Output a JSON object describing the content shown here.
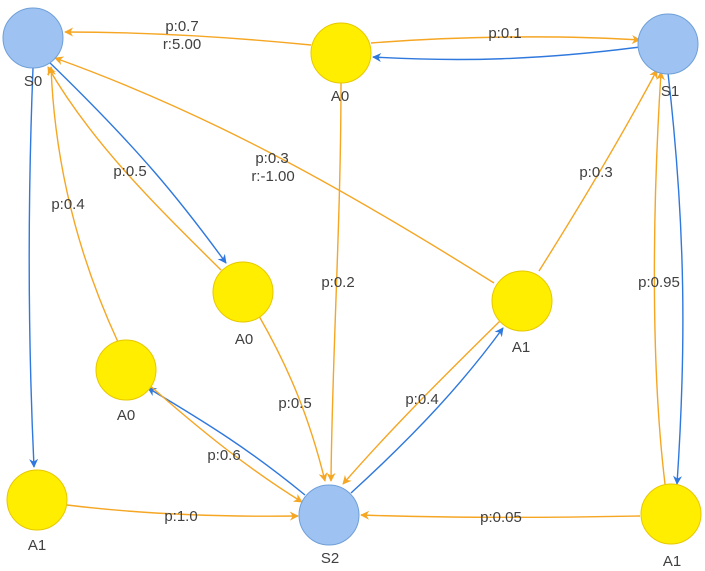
{
  "colors": {
    "state_fill": "#9ec3f2",
    "state_stroke": "#6f9fd8",
    "action_fill": "#ffee00",
    "action_stroke": "#e6c800",
    "edge_state_to_action": "#2f78dd",
    "edge_action_to_state": "#f5a623",
    "label_text": "#404040"
  },
  "nodes": [
    {
      "id": "s0",
      "label": "S0",
      "kind": "state"
    },
    {
      "id": "s1",
      "label": "S1",
      "kind": "state"
    },
    {
      "id": "s2",
      "label": "S2",
      "kind": "state"
    },
    {
      "id": "a0_top",
      "label": "A0",
      "kind": "action"
    },
    {
      "id": "a0_mid",
      "label": "A0",
      "kind": "action"
    },
    {
      "id": "a0_left",
      "label": "A0",
      "kind": "action"
    },
    {
      "id": "a1_mid",
      "label": "A1",
      "kind": "action"
    },
    {
      "id": "a1_left",
      "label": "A1",
      "kind": "action"
    },
    {
      "id": "a1_right",
      "label": "A1",
      "kind": "action"
    }
  ],
  "edges": [
    {
      "id": "s0-a0mid",
      "kind": "state_to_action",
      "label": ""
    },
    {
      "id": "s0-a1left",
      "kind": "state_to_action",
      "label": ""
    },
    {
      "id": "s1-a0top",
      "kind": "state_to_action",
      "label": ""
    },
    {
      "id": "s1-a1right",
      "kind": "state_to_action",
      "label": ""
    },
    {
      "id": "s2-a0left",
      "kind": "state_to_action",
      "label": ""
    },
    {
      "id": "s2-a1mid",
      "kind": "state_to_action",
      "label": ""
    },
    {
      "id": "a0top-s0",
      "kind": "action_to_state",
      "label": "p:0.7",
      "label2": "r:5.00"
    },
    {
      "id": "a0top-s1",
      "kind": "action_to_state",
      "label": "p:0.1"
    },
    {
      "id": "a0top-s2",
      "kind": "action_to_state",
      "label": "p:0.2"
    },
    {
      "id": "a0mid-s0",
      "kind": "action_to_state",
      "label": "p:0.5"
    },
    {
      "id": "a0mid-s2",
      "kind": "action_to_state",
      "label": "p:0.5"
    },
    {
      "id": "a0left-s0",
      "kind": "action_to_state",
      "label": "p:0.4"
    },
    {
      "id": "a0left-s2",
      "kind": "action_to_state",
      "label": "p:0.6"
    },
    {
      "id": "a1mid-s0",
      "kind": "action_to_state",
      "label": "p:0.3",
      "label2": "r:-1.00"
    },
    {
      "id": "a1mid-s1",
      "kind": "action_to_state",
      "label": "p:0.3"
    },
    {
      "id": "a1mid-s2",
      "kind": "action_to_state",
      "label": "p:0.4"
    },
    {
      "id": "a1left-s2",
      "kind": "action_to_state",
      "label": "p:1.0"
    },
    {
      "id": "a1right-s1",
      "kind": "action_to_state",
      "label": "p:0.95"
    },
    {
      "id": "a1right-s2",
      "kind": "action_to_state",
      "label": "p:0.05"
    }
  ]
}
